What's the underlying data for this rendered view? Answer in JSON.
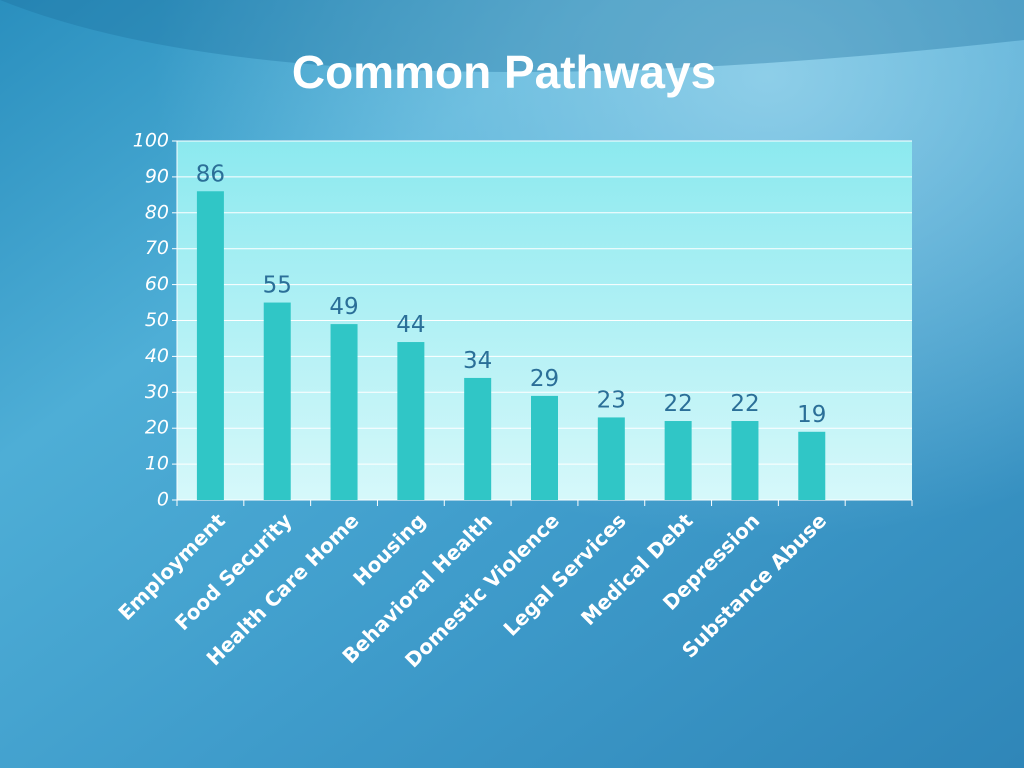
{
  "chart_data": {
    "type": "bar",
    "title": "Common Pathways",
    "categories": [
      "Employment",
      "Food Security",
      "Health Care Home",
      "Housing",
      "Behavioral Health",
      "Domestic Violence",
      "Legal Services",
      "Medical Debt",
      "Depression",
      "Substance Abuse",
      null
    ],
    "values": [
      86,
      55,
      49,
      44,
      34,
      29,
      23,
      22,
      22,
      19,
      null
    ],
    "color": "#30c6c6",
    "ylim": [
      0,
      100
    ],
    "yticks": [
      0,
      10,
      20,
      30,
      40,
      50,
      60,
      70,
      80,
      90,
      100
    ],
    "grid": true
  }
}
